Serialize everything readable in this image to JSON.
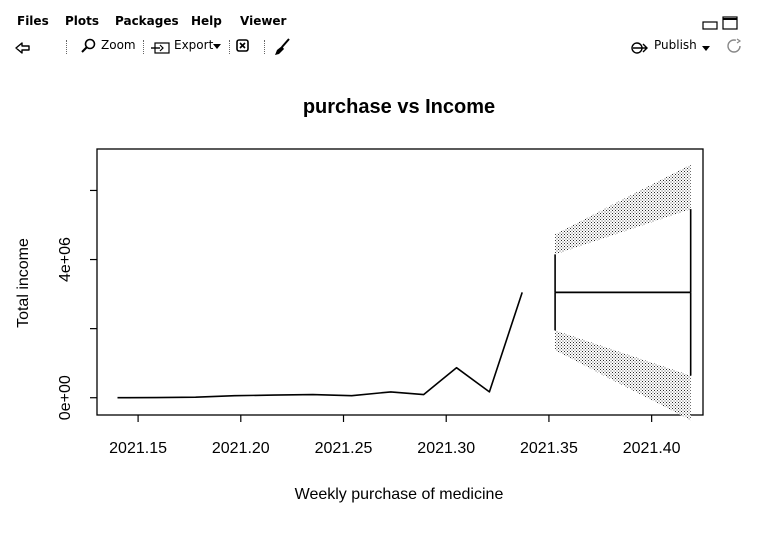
{
  "menu": {
    "files": "Files",
    "plots": "Plots",
    "packages": "Packages",
    "help": "Help",
    "viewer": "Viewer"
  },
  "toolbar": {
    "zoom": "Zoom",
    "export": "Export",
    "publish": "Publish"
  },
  "chart_data": {
    "type": "line",
    "title": "purchase vs Income",
    "xlabel": "Weekly purchase of medicine",
    "ylabel": "Total income",
    "xlim": [
      2021.13,
      2021.425
    ],
    "ylim": [
      -500000,
      7200000
    ],
    "x_ticks": [
      2021.15,
      2021.2,
      2021.25,
      2021.3,
      2021.35,
      2021.4
    ],
    "x_tick_labels": [
      "2021.15",
      "2021.20",
      "2021.25",
      "2021.30",
      "2021.35",
      "2021.40"
    ],
    "y_ticks": [
      0,
      2000000,
      4000000,
      6000000
    ],
    "y_tick_labels": [
      "0e+00",
      "",
      "4e+06",
      ""
    ],
    "grid": false,
    "series": [
      {
        "values_x": [
          2021.14,
          2021.159,
          2021.178,
          2021.197,
          2021.216,
          2021.235,
          2021.254,
          2021.273,
          2021.289,
          2021.305,
          2021.321,
          2021.337
        ],
        "values_y": [
          0,
          5000,
          15000,
          60000,
          75000,
          90000,
          60000,
          170000,
          90000,
          870000,
          170000,
          3050000
        ]
      }
    ],
    "forecast": {
      "x": [
        2021.353,
        2021.419
      ],
      "mean": [
        3050000,
        3050000
      ],
      "lo80": [
        1950000,
        640000
      ],
      "hi80": [
        4150000,
        5460000
      ],
      "lo95": [
        1370000,
        -650000
      ],
      "hi95": [
        4730000,
        6750000
      ]
    }
  }
}
